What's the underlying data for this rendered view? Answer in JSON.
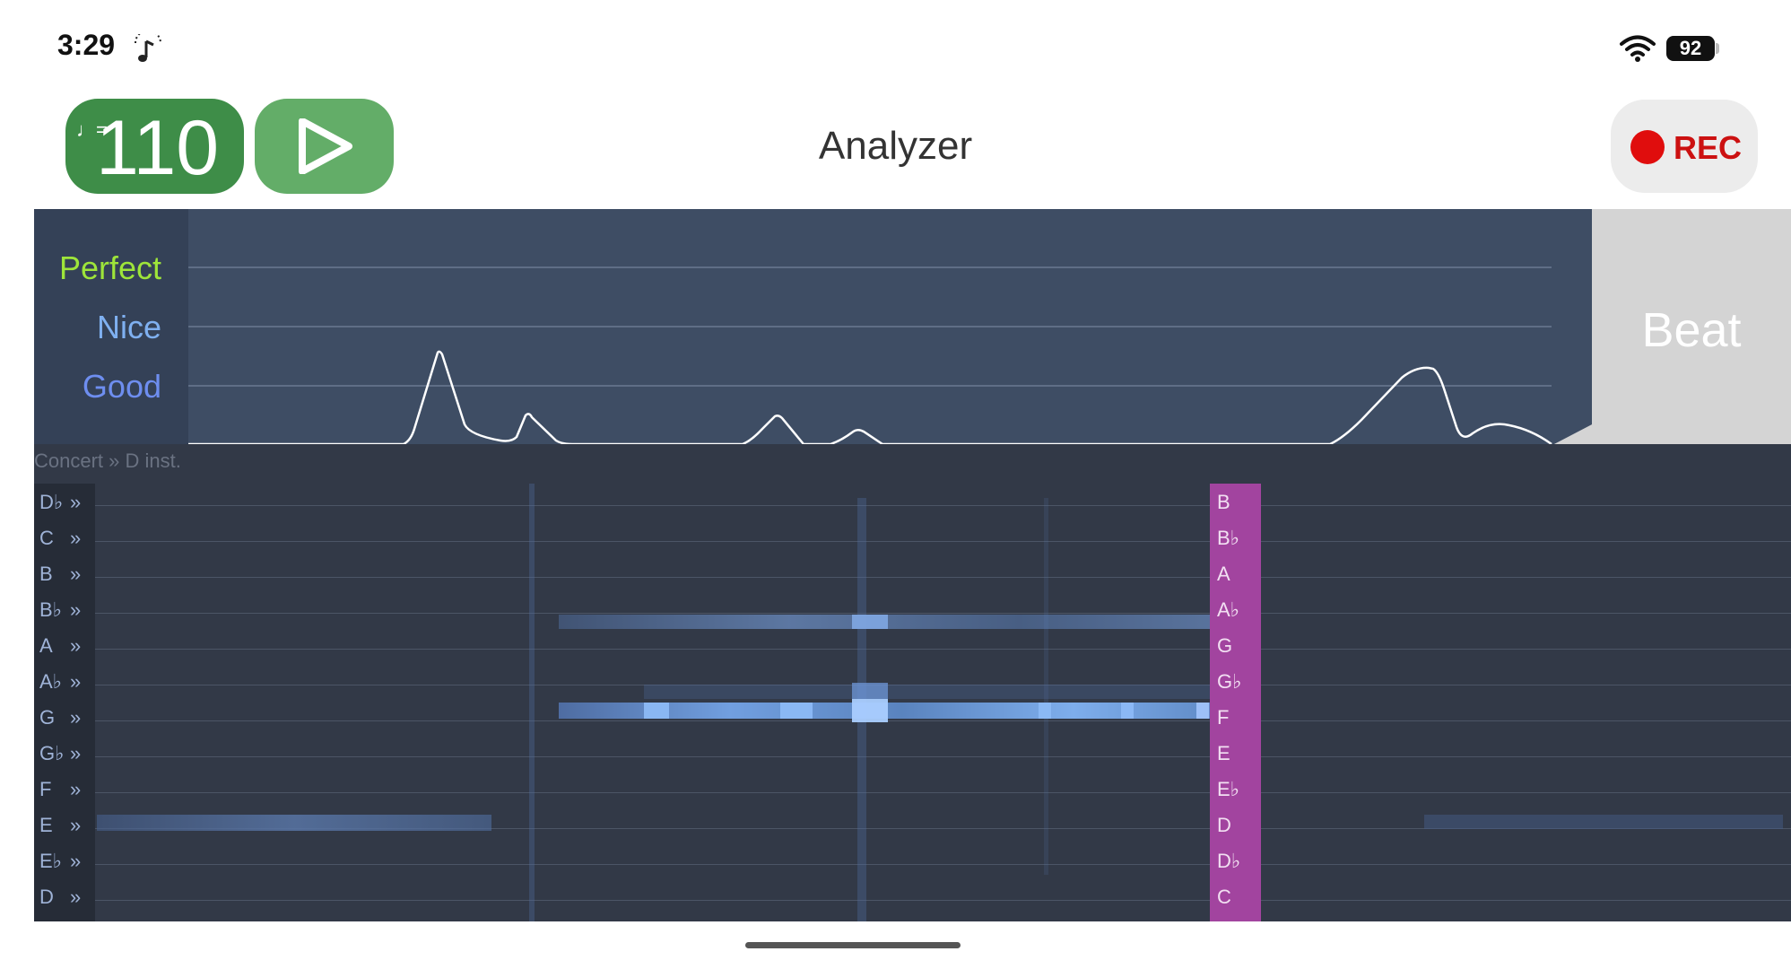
{
  "status": {
    "time": "3:29",
    "battery": "92"
  },
  "toolbar": {
    "tempo": "110",
    "tempo_note": "♩=",
    "title": "Analyzer",
    "rec_label": "REC"
  },
  "analyzer": {
    "grades": [
      "Perfect",
      "Nice",
      "Good"
    ],
    "beat_label": "Beat"
  },
  "pitch": {
    "mode_label": "Concert » D inst.",
    "concert_notes": [
      "D♭",
      "C",
      "B",
      "B♭",
      "A",
      "A♭",
      "G",
      "G♭",
      "F",
      "E",
      "E♭",
      "D"
    ],
    "row_marker": "»",
    "instrument_notes": [
      "B",
      "B♭",
      "A",
      "A♭",
      "G",
      "G♭",
      "F",
      "E",
      "E♭",
      "D",
      "D♭",
      "C"
    ]
  },
  "colors": {
    "perfect": "#9ee53a",
    "nice": "#7fb0f0",
    "good": "#6e8ef0",
    "cursor": "#a2449f",
    "rec": "#e00d0d"
  }
}
